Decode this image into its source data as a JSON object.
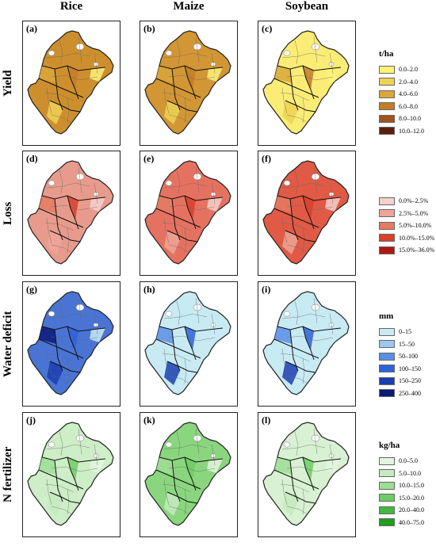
{
  "columns": [
    "Rice",
    "Maize",
    "Soybean"
  ],
  "rows": [
    {
      "label": "Yield",
      "panels": [
        "(a)",
        "(b)",
        "(c)"
      ],
      "legend": {
        "title": "t/ha",
        "items": [
          {
            "label": "0.0–2.0",
            "color": "#fdf27a"
          },
          {
            "label": "2.0–4.0",
            "color": "#eed256"
          },
          {
            "label": "4.0–6.0",
            "color": "#d9a73b"
          },
          {
            "label": "6.0–8.0",
            "color": "#c47d27"
          },
          {
            "label": "8.0–10.0",
            "color": "#a0531b"
          },
          {
            "label": "10.0–12.0",
            "color": "#5c1e0c"
          }
        ]
      },
      "fills": [
        "#cd8f2e",
        "#d29634",
        "#fbec76"
      ]
    },
    {
      "label": "Loss",
      "panels": [
        "(d)",
        "(e)",
        "(f)"
      ],
      "legend": {
        "title": "",
        "items": [
          {
            "label": "0.0%–2.5%",
            "color": "#f6d0cb"
          },
          {
            "label": "2.5%–5.0%",
            "color": "#eda597"
          },
          {
            "label": "5.0%–10.0%",
            "color": "#e57b63"
          },
          {
            "label": "10.0%–15.0%",
            "color": "#d9402a"
          },
          {
            "label": "15.0%–36.0%",
            "color": "#b2170f"
          }
        ]
      },
      "fills": [
        "#e89b8c",
        "#e57260",
        "#e05a45"
      ]
    },
    {
      "label": "Water deficit",
      "panels": [
        "(g)",
        "(h)",
        "(i)"
      ],
      "legend": {
        "title": "mm",
        "items": [
          {
            "label": "0–15",
            "color": "#c8eaf3"
          },
          {
            "label": "15–50",
            "color": "#9cc8ee"
          },
          {
            "label": "50–100",
            "color": "#5a8ee6"
          },
          {
            "label": "100–150",
            "color": "#2f62d8"
          },
          {
            "label": "150–250",
            "color": "#1b3eb0"
          },
          {
            "label": "250–400",
            "color": "#0a1a78"
          }
        ]
      },
      "fills": [
        "#4a74d4",
        "#c8eaf3",
        "#c8eaf3"
      ]
    },
    {
      "label": "N fertilizer",
      "panels": [
        "(j)",
        "(k)",
        "(l)"
      ],
      "legend": {
        "title": "kg/ha",
        "items": [
          {
            "label": "0.0–5.0",
            "color": "#e3f4df"
          },
          {
            "label": "5.0–10.0",
            "color": "#c6eac0"
          },
          {
            "label": "10.0–15.0",
            "color": "#9edd94"
          },
          {
            "label": "15.0–20.0",
            "color": "#6fcc66"
          },
          {
            "label": "20.0–40.0",
            "color": "#45b83e"
          },
          {
            "label": "40.0–75.0",
            "color": "#1f9e1f"
          }
        ]
      },
      "fills": [
        "#cdeec7",
        "#8ad67e",
        "#d8f1d2"
      ]
    }
  ]
}
